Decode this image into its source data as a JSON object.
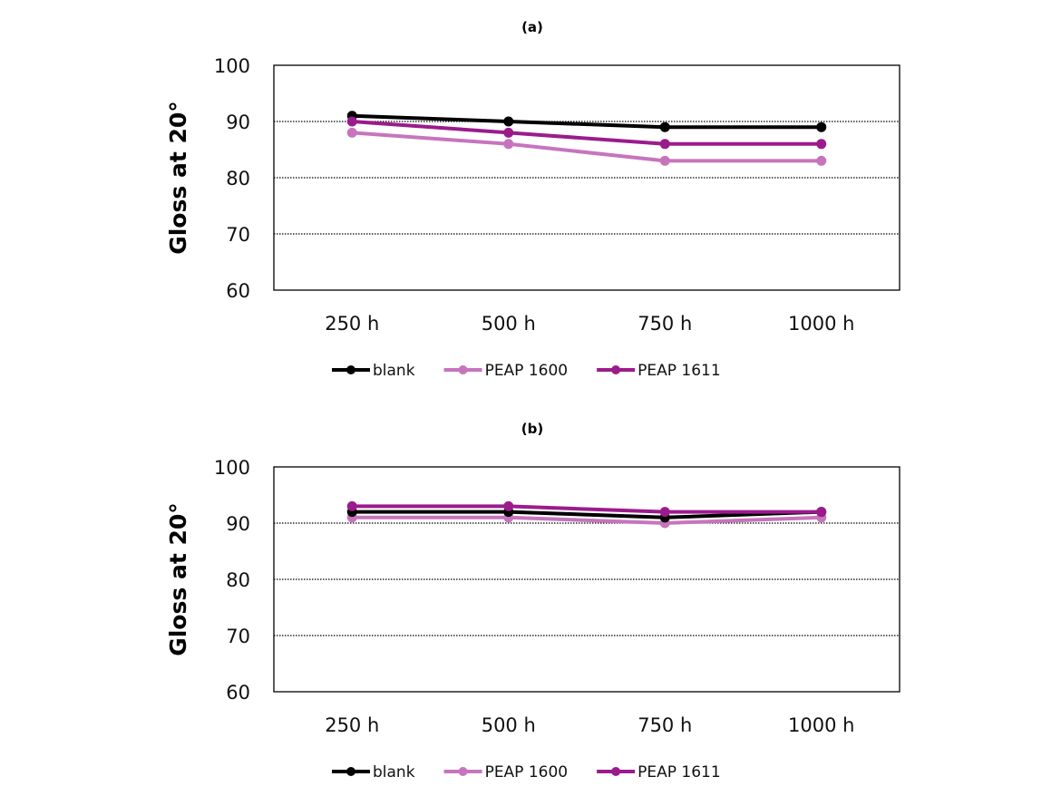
{
  "chart_data": [
    {
      "type": "line",
      "title": "(a)",
      "xlabel": "",
      "ylabel": "Gloss at 20°",
      "categories": [
        "250 h",
        "500 h",
        "750 h",
        "1000 h"
      ],
      "ylim": [
        60,
        100
      ],
      "yticks": [
        60,
        70,
        80,
        90,
        100
      ],
      "grid": "horizontal dotted",
      "legend": "bottom",
      "series": [
        {
          "name": "blank",
          "color": "#000000",
          "values": [
            91,
            90,
            89,
            89
          ]
        },
        {
          "name": "PEAP 1600",
          "color": "#c774bd",
          "values": [
            88,
            86,
            83,
            83
          ]
        },
        {
          "name": "PEAP 1611",
          "color": "#9b1b8c",
          "values": [
            90,
            88,
            86,
            86
          ]
        }
      ]
    },
    {
      "type": "line",
      "title": "(b)",
      "xlabel": "",
      "ylabel": "Gloss at 20°",
      "categories": [
        "250 h",
        "500 h",
        "750 h",
        "1000 h"
      ],
      "ylim": [
        60,
        100
      ],
      "yticks": [
        60,
        70,
        80,
        90,
        100
      ],
      "grid": "horizontal dotted",
      "legend": "bottom",
      "series": [
        {
          "name": "blank",
          "color": "#000000",
          "values": [
            92,
            92,
            91,
            92
          ]
        },
        {
          "name": "PEAP 1600",
          "color": "#c774bd",
          "values": [
            91,
            91,
            90,
            91
          ]
        },
        {
          "name": "PEAP 1611",
          "color": "#9b1b8c",
          "values": [
            93,
            93,
            92,
            92
          ]
        }
      ]
    }
  ]
}
